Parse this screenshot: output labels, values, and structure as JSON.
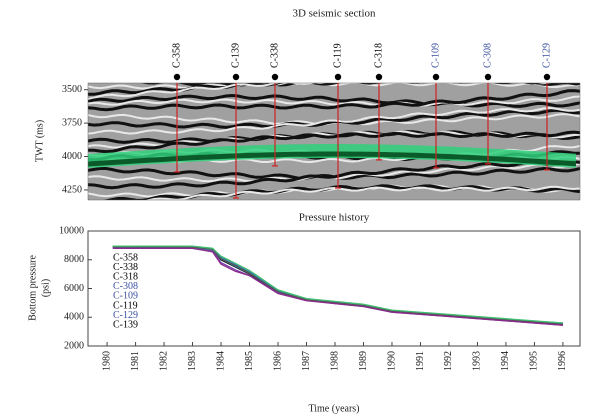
{
  "chart_data": [
    {
      "type": "seismic",
      "title": "3D seismic section",
      "ylabel": "TWT (ms)",
      "ylim": [
        3450,
        4325
      ],
      "yticks": [
        3500,
        3750,
        4000,
        4250
      ],
      "wells": [
        {
          "name": "C-358",
          "color": "#000000",
          "depth": 4115
        },
        {
          "name": "C-139",
          "color": "#000000",
          "depth": 4310
        },
        {
          "name": "C-338",
          "color": "#000000",
          "depth": 4070
        },
        {
          "name": "C-119",
          "color": "#000000",
          "depth": 4235
        },
        {
          "name": "C-318",
          "color": "#000000",
          "depth": 4025
        },
        {
          "name": "C-109",
          "color": "#3a4fa0",
          "depth": 4085
        },
        {
          "name": "C-308",
          "color": "#3a4fa0",
          "depth": 4055
        },
        {
          "name": "C-129",
          "color": "#3a4fa0",
          "depth": 4100
        }
      ]
    },
    {
      "type": "line",
      "title": "Pressure history",
      "xlabel": "Time (years)",
      "ylabel_lines": [
        "Bottom pressure",
        "(psi)"
      ],
      "xlim": [
        1979.33,
        1996.6
      ],
      "ylim": [
        2000,
        10000
      ],
      "xticks": [
        1980,
        1981,
        1982,
        1983,
        1984,
        1985,
        1986,
        1987,
        1988,
        1989,
        1990,
        1991,
        1992,
        1993,
        1994,
        1995,
        1996
      ],
      "yticks": [
        2000,
        4000,
        6000,
        8000,
        10000
      ],
      "x": [
        1980.2,
        1983,
        1983.7,
        1984,
        1984.5,
        1985,
        1986,
        1987,
        1988,
        1989,
        1990,
        1992,
        1994,
        1996
      ],
      "series": [
        {
          "name": "C-358",
          "color": "#1a8a3a",
          "label_color": "#000000",
          "values": [
            8900,
            8900,
            8750,
            8100,
            7600,
            7100,
            5800,
            5250,
            5050,
            4850,
            4450,
            4150,
            3850,
            3550
          ]
        },
        {
          "name": "C-338",
          "color": "#000000",
          "label_color": "#000000",
          "values": [
            8850,
            8850,
            8700,
            8000,
            7500,
            7000,
            5750,
            5200,
            5000,
            4800,
            4400,
            4100,
            3800,
            3500
          ]
        },
        {
          "name": "C-318",
          "color": "#7a3fb0",
          "label_color": "#000000",
          "values": [
            8800,
            8800,
            8600,
            7800,
            7300,
            6900,
            5700,
            5200,
            4950,
            4750,
            4350,
            4050,
            3750,
            3450
          ]
        },
        {
          "name": "C-308",
          "color": "#3a6fd0",
          "label_color": "#3a4fa0",
          "values": [
            8900,
            8900,
            8750,
            8200,
            7700,
            7200,
            5850,
            5300,
            5050,
            4850,
            4450,
            4150,
            3850,
            3550
          ]
        },
        {
          "name": "C-109",
          "color": "#2aa0c0",
          "label_color": "#3a4fa0",
          "values": [
            8850,
            8850,
            8700,
            8050,
            7550,
            7050,
            5800,
            5250,
            5000,
            4800,
            4450,
            4150,
            3850,
            3600
          ]
        },
        {
          "name": "C-119",
          "color": "#555555",
          "label_color": "#000000",
          "values": [
            8900,
            8880,
            8720,
            8050,
            7600,
            7050,
            5780,
            5220,
            5020,
            4820,
            4420,
            4120,
            3820,
            3520
          ]
        },
        {
          "name": "C-129",
          "color": "#40c070",
          "label_color": "#3a4fa0",
          "values": [
            8950,
            8950,
            8800,
            8250,
            7750,
            7250,
            5900,
            5300,
            5100,
            4900,
            4500,
            4200,
            3900,
            3600
          ]
        },
        {
          "name": "C-139",
          "color": "#8a2a8a",
          "label_color": "#000000",
          "values": [
            8800,
            8800,
            8550,
            7700,
            7200,
            6900,
            5650,
            5150,
            4950,
            4750,
            4350,
            4050,
            3750,
            3450
          ]
        }
      ]
    }
  ]
}
